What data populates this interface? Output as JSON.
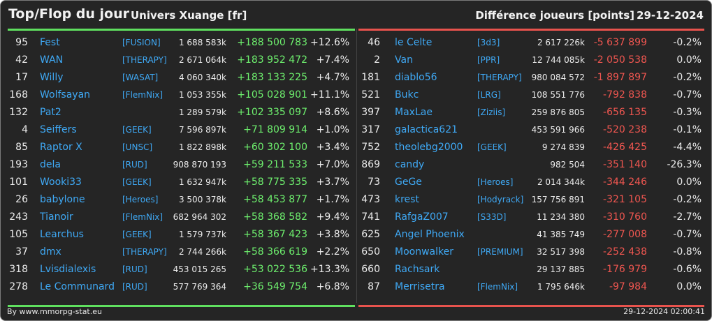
{
  "header": {
    "title": "Top/Flop du jour",
    "universe": "Univers Xuange [fr]",
    "metric": "Différence joueurs [points]",
    "date": "29-12-2024"
  },
  "top": [
    {
      "rank": "95",
      "name": "Fest",
      "alliance": "[FUSION]",
      "points": "1 688 583k",
      "delta": "+188 500 783",
      "pct": "+12.6%"
    },
    {
      "rank": "42",
      "name": "WAN",
      "alliance": "[THERAPY]",
      "points": "2 671 064k",
      "delta": "+183 952 472",
      "pct": "+7.4%"
    },
    {
      "rank": "17",
      "name": "Willy",
      "alliance": "[WASAT]",
      "points": "4 060 340k",
      "delta": "+183 133 225",
      "pct": "+4.7%"
    },
    {
      "rank": "168",
      "name": "Wolfsayan",
      "alliance": "[FlemNix]",
      "points": "1 053 355k",
      "delta": "+105 028 901",
      "pct": "+11.1%"
    },
    {
      "rank": "132",
      "name": "Pat2",
      "alliance": "",
      "points": "1 289 579k",
      "delta": "+102 335 097",
      "pct": "+8.6%"
    },
    {
      "rank": "4",
      "name": "Seiffers",
      "alliance": "[GEEK]",
      "points": "7 596 897k",
      "delta": "+71 809 914",
      "pct": "+1.0%"
    },
    {
      "rank": "85",
      "name": "Raptor X",
      "alliance": "[UNSC]",
      "points": "1 822 898k",
      "delta": "+60 302 100",
      "pct": "+3.4%"
    },
    {
      "rank": "193",
      "name": "dela",
      "alliance": "[RUD]",
      "points": "908 870 193",
      "delta": "+59 211 533",
      "pct": "+7.0%"
    },
    {
      "rank": "101",
      "name": "Wooki33",
      "alliance": "[GEEK]",
      "points": "1 632 947k",
      "delta": "+58 775 335",
      "pct": "+3.7%"
    },
    {
      "rank": "26",
      "name": "babylone",
      "alliance": "[Heroes]",
      "points": "3 500 378k",
      "delta": "+58 453 877",
      "pct": "+1.7%"
    },
    {
      "rank": "243",
      "name": "Tianoir",
      "alliance": "[FlemNix]",
      "points": "682 964 302",
      "delta": "+58 368 582",
      "pct": "+9.4%"
    },
    {
      "rank": "105",
      "name": "Learchus",
      "alliance": "[GEEK]",
      "points": "1 579 737k",
      "delta": "+58 367 423",
      "pct": "+3.8%"
    },
    {
      "rank": "37",
      "name": "dmx",
      "alliance": "[THERAPY]",
      "points": "2 744 266k",
      "delta": "+58 366 619",
      "pct": "+2.2%"
    },
    {
      "rank": "318",
      "name": "Lvisdialexis",
      "alliance": "[RUD]",
      "points": "453 015 265",
      "delta": "+53 022 536",
      "pct": "+13.3%"
    },
    {
      "rank": "278",
      "name": "Le Communard",
      "alliance": "[RUD]",
      "points": "577 769 364",
      "delta": "+36 549 754",
      "pct": "+6.8%"
    }
  ],
  "flop": [
    {
      "rank": "46",
      "name": "le Celte",
      "alliance": "[3d3]",
      "points": "2 617 226k",
      "delta": "-5 637 899",
      "pct": "-0.2%"
    },
    {
      "rank": "2",
      "name": "Van",
      "alliance": "[PPR]",
      "points": "12 744 085k",
      "delta": "-2 050 538",
      "pct": "0.0%"
    },
    {
      "rank": "181",
      "name": "diablo56",
      "alliance": "[THERAPY]",
      "points": "980 084 572",
      "delta": "-1 897 897",
      "pct": "-0.2%"
    },
    {
      "rank": "521",
      "name": "Bukc",
      "alliance": "[LRG]",
      "points": "108 551 776",
      "delta": "-792 838",
      "pct": "-0.7%"
    },
    {
      "rank": "397",
      "name": "MaxLae",
      "alliance": "[Ziziis]",
      "points": "259 876 805",
      "delta": "-656 135",
      "pct": "-0.3%"
    },
    {
      "rank": "317",
      "name": "galactica621",
      "alliance": "",
      "points": "453 591 966",
      "delta": "-520 238",
      "pct": "-0.1%"
    },
    {
      "rank": "752",
      "name": "theolebg2000",
      "alliance": "[GEEK]",
      "points": "9 274 839",
      "delta": "-426 425",
      "pct": "-4.4%"
    },
    {
      "rank": "869",
      "name": "candy",
      "alliance": "",
      "points": "982 504",
      "delta": "-351 140",
      "pct": "-26.3%"
    },
    {
      "rank": "73",
      "name": "GeGe",
      "alliance": "[Heroes]",
      "points": "2 014 344k",
      "delta": "-344 246",
      "pct": "0.0%"
    },
    {
      "rank": "473",
      "name": "krest",
      "alliance": "[Hodyrack]",
      "points": "157 756 891",
      "delta": "-321 105",
      "pct": "-0.2%"
    },
    {
      "rank": "741",
      "name": "RafgaZ007",
      "alliance": "[S33D]",
      "points": "11 234 380",
      "delta": "-310 760",
      "pct": "-2.7%"
    },
    {
      "rank": "625",
      "name": "Angel Phoenix",
      "alliance": "",
      "points": "41 385 749",
      "delta": "-277 008",
      "pct": "-0.7%"
    },
    {
      "rank": "650",
      "name": "Moonwalker",
      "alliance": "[PREMIUM]",
      "points": "32 517 398",
      "delta": "-252 438",
      "pct": "-0.8%"
    },
    {
      "rank": "660",
      "name": "Rachsark",
      "alliance": "",
      "points": "29 137 885",
      "delta": "-176 979",
      "pct": "-0.6%"
    },
    {
      "rank": "87",
      "name": "Merrisetra",
      "alliance": "[FlemNix]",
      "points": "1 795 646k",
      "delta": "-97 984",
      "pct": "0.0%"
    }
  ],
  "footer": {
    "credit": "By www.mmorpg-stat.eu",
    "timestamp": "29-12-2024 02:00:41"
  },
  "colors": {
    "top_accent": "#5fe05f",
    "flop_accent": "#e8534d",
    "link": "#3fa9f5"
  }
}
